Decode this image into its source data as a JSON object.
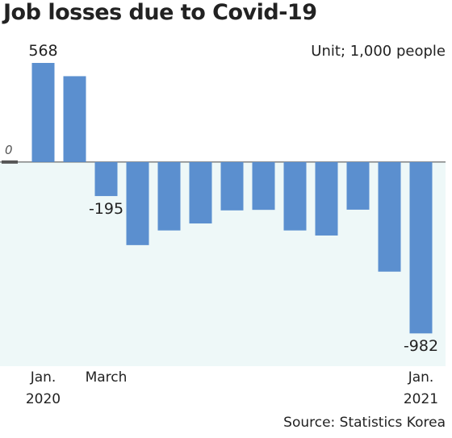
{
  "chart_data": {
    "type": "bar",
    "title": "Job losses due to Covid-19",
    "unit": "Unit; 1,000 people",
    "source": "Source: Statistics Korea",
    "categories": [
      "Jan.\n2020",
      null,
      "March",
      null,
      null,
      null,
      null,
      null,
      null,
      null,
      null,
      null,
      "Jan.\n2021"
    ],
    "values": [
      568,
      492,
      -195,
      -476,
      -392,
      -352,
      -277,
      -274,
      -392,
      -421,
      -273,
      -628,
      -982
    ],
    "value_labels": [
      "568",
      null,
      "-195",
      null,
      null,
      null,
      null,
      null,
      null,
      null,
      null,
      null,
      "-982"
    ],
    "color": "#5b8fcf",
    "ylim": [
      -1170,
      850
    ],
    "yticks": [
      0
    ]
  }
}
